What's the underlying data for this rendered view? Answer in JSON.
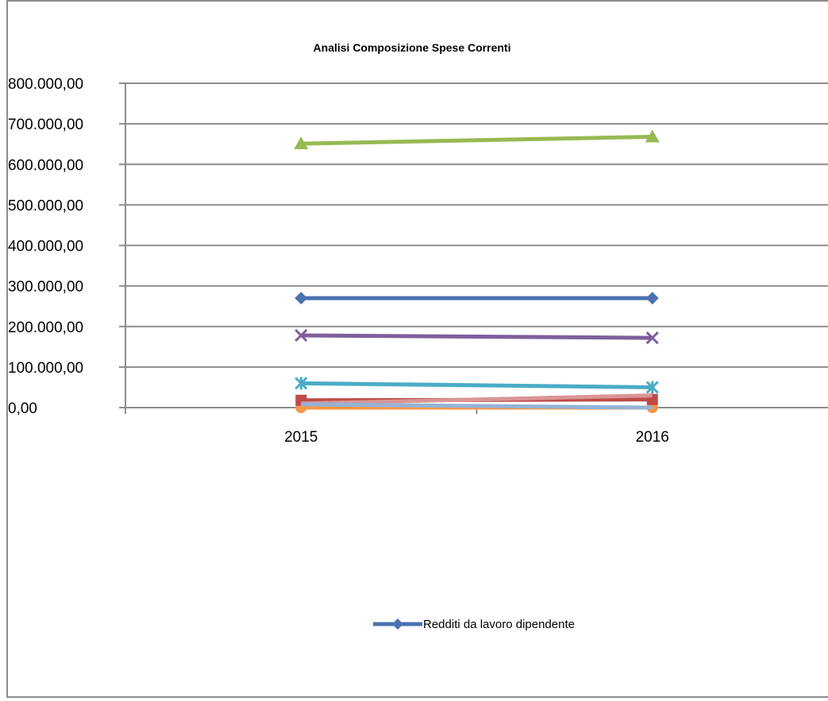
{
  "chart_data": {
    "type": "line",
    "title": "Analisi Composizione Spese Correnti",
    "xlabel": "",
    "ylabel": "",
    "categories": [
      "2015",
      "2016"
    ],
    "ylim": [
      0,
      800000
    ],
    "yticks": [
      0,
      100000,
      200000,
      300000,
      400000,
      500000,
      600000,
      700000,
      800000
    ],
    "ytick_labels": [
      "0,00",
      "100.000,00",
      "200.000,00",
      "300.000,00",
      "400.000,00",
      "500.000,00",
      "600.000,00",
      "700.000,00",
      "800.000,00"
    ],
    "grid": true,
    "legend_position": "bottom",
    "series": [
      {
        "name": "Redditi da lavoro dipendente",
        "color": "#4a72b0",
        "marker": "diamond",
        "values": [
          270000,
          270000
        ]
      },
      {
        "color": "#be4b48",
        "marker": "square",
        "values": [
          18000,
          20000
        ]
      },
      {
        "color": "#98b954",
        "marker": "triangle",
        "values": [
          651000,
          668000
        ]
      },
      {
        "color": "#7e5f9c",
        "marker": "x",
        "values": [
          178000,
          172000
        ]
      },
      {
        "color": "#4bacc6",
        "marker": "star",
        "values": [
          60000,
          50000
        ]
      },
      {
        "color": "#f79646",
        "marker": "circle",
        "values": [
          0,
          0
        ]
      },
      {
        "color": "#d99694",
        "marker": "line",
        "values": [
          10000,
          30000
        ]
      },
      {
        "color": "#95b3d7",
        "marker": "line",
        "values": [
          8000,
          0
        ]
      }
    ]
  }
}
